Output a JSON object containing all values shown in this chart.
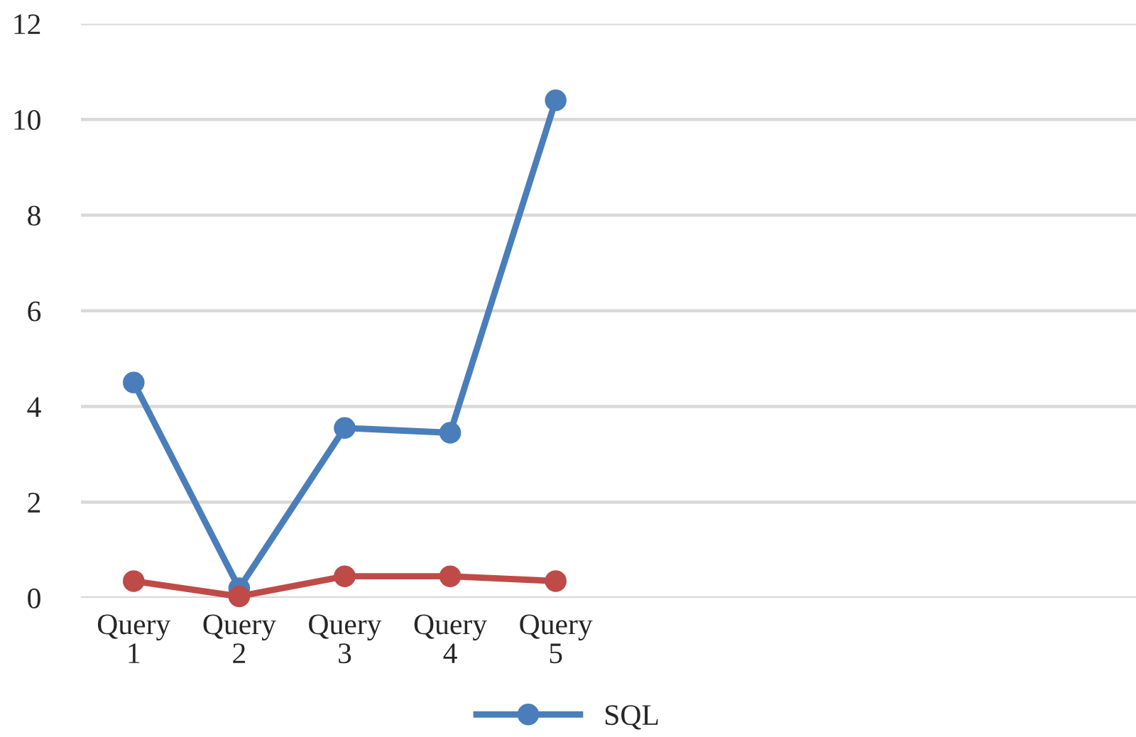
{
  "chart_data": {
    "type": "line",
    "categories": [
      "Query\n1",
      "Query\n2",
      "Query\n3",
      "Query\n4",
      "Query\n5",
      null,
      null,
      null,
      null,
      null
    ],
    "series": [
      {
        "name": "SQL",
        "color": "#4a7ebb",
        "values": [
          4.5,
          0.2,
          3.55,
          3.45,
          10.4,
          null,
          null,
          null,
          null,
          null
        ]
      },
      {
        "color": "#be4b48",
        "values": [
          0.35,
          0.03,
          0.45,
          0.45,
          0.35,
          null,
          null,
          null,
          null,
          null
        ]
      }
    ],
    "ylim": [
      0,
      12
    ],
    "yticks": [
      0,
      2,
      4,
      6,
      8,
      10,
      12
    ],
    "grid": "y",
    "legend": "bottom",
    "marker": "circle",
    "line_style": "solid"
  }
}
